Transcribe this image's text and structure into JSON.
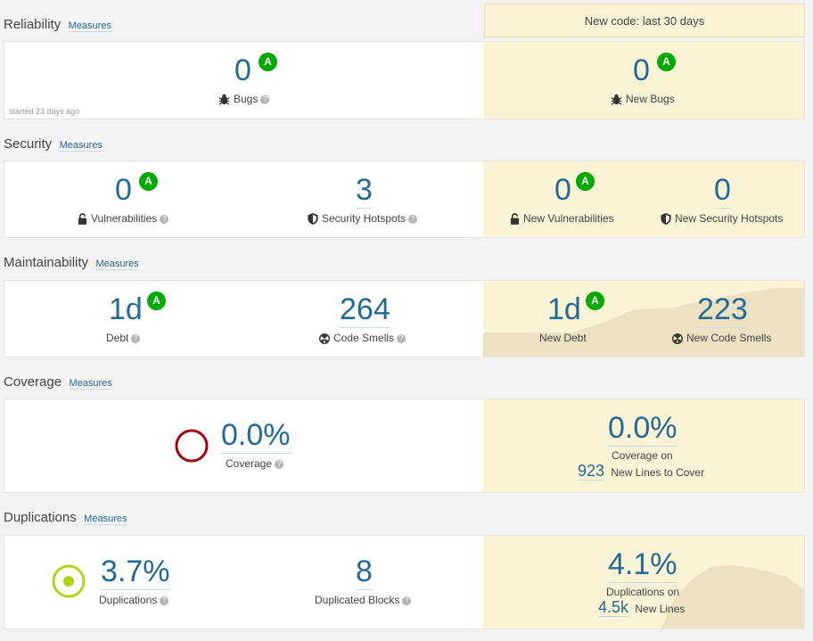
{
  "new_code_header": "New code: last 30 days",
  "measures_label": "Measures",
  "reliability": {
    "title": "Reliability",
    "bugs": {
      "value": "0",
      "rating": "A",
      "label": "Bugs"
    },
    "started": "started 23 days ago",
    "new_bugs": {
      "value": "0",
      "rating": "A",
      "label": "New Bugs"
    }
  },
  "security": {
    "title": "Security",
    "vulnerabilities": {
      "value": "0",
      "rating": "A",
      "label": "Vulnerabilities"
    },
    "hotspots": {
      "value": "3",
      "label": "Security Hotspots"
    },
    "new_vulnerabilities": {
      "value": "0",
      "rating": "A",
      "label": "New Vulnerabilities"
    },
    "new_hotspots": {
      "value": "0",
      "label": "New Security Hotspots"
    }
  },
  "maintainability": {
    "title": "Maintainability",
    "debt": {
      "value": "1d",
      "rating": "A",
      "label": "Debt"
    },
    "code_smells": {
      "value": "264",
      "label": "Code Smells"
    },
    "new_debt": {
      "value": "1d",
      "rating": "A",
      "label": "New Debt"
    },
    "new_code_smells": {
      "value": "223",
      "label": "New Code Smells"
    }
  },
  "coverage": {
    "title": "Coverage",
    "overall": {
      "value": "0.0%",
      "label": "Coverage"
    },
    "new": {
      "value": "0.0%",
      "label": "Coverage on",
      "lines_value": "923",
      "lines_label": "New Lines to Cover"
    }
  },
  "duplications": {
    "title": "Duplications",
    "overall": {
      "value": "3.7%",
      "label": "Duplications"
    },
    "blocks": {
      "value": "8",
      "label": "Duplicated Blocks"
    },
    "new": {
      "value": "4.1%",
      "label": "Duplications on",
      "lines_value": "4.5k",
      "lines_label": "New Lines"
    }
  },
  "colors": {
    "accent": "#236a97",
    "rating_a": "#00aa00",
    "new_code_bg": "#fbf3d5",
    "coverage_ring": "#a4030f",
    "duplication_ring": "#b0d513"
  }
}
